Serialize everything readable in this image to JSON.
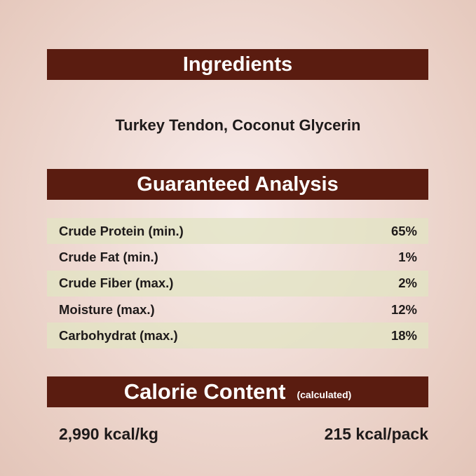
{
  "ingredients": {
    "title": "Ingredients",
    "text": "Turkey Tendon, Coconut Glycerin"
  },
  "analysis": {
    "title": "Guaranteed Analysis",
    "rows": [
      {
        "label": "Crude Protein (min.)",
        "value": "65%"
      },
      {
        "label": "Crude Fat (min.)",
        "value": "1%"
      },
      {
        "label": "Crude Fiber (max.)",
        "value": "2%"
      },
      {
        "label": "Moisture (max.)",
        "value": "12%"
      },
      {
        "label": "Carbohydrat (max.)",
        "value": "18%"
      }
    ]
  },
  "calorie": {
    "title": "Calorie Content",
    "subtitle": "(calculated)",
    "per_kg": "2,990 kcal/kg",
    "per_pack": "215 kcal/pack"
  },
  "colors": {
    "banner": "#5a1c10",
    "stripe": "#e1e4c3",
    "background": "#ecd3c8"
  }
}
